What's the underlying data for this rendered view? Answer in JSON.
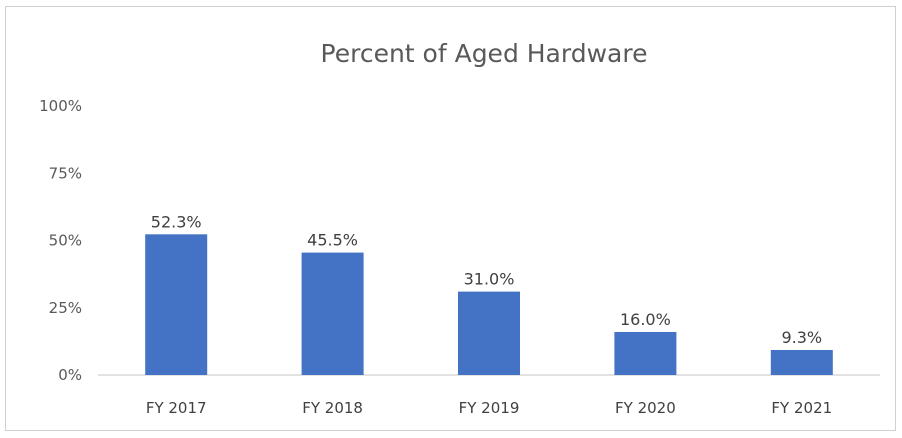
{
  "chart_data": {
    "type": "bar",
    "title": "Percent of Aged Hardware",
    "categories": [
      "FY 2017",
      "FY 2018",
      "FY 2019",
      "FY 2020",
      "FY 2021"
    ],
    "values": [
      52.3,
      45.5,
      31.0,
      16.0,
      9.3
    ],
    "data_labels": [
      "52.3%",
      "45.5%",
      "31.0%",
      "16.0%",
      "9.3%"
    ],
    "yticks": [
      {
        "value": 0,
        "label": "0%"
      },
      {
        "value": 25,
        "label": "25%"
      },
      {
        "value": 50,
        "label": "50%"
      },
      {
        "value": 75,
        "label": "75%"
      },
      {
        "value": 100,
        "label": "100%"
      }
    ],
    "ylim": [
      0,
      100
    ],
    "xlabel": "",
    "ylabel": "",
    "grid": false,
    "legend": "none",
    "bar_color": "#4472c4",
    "axis_color": "#d9d9d9"
  }
}
